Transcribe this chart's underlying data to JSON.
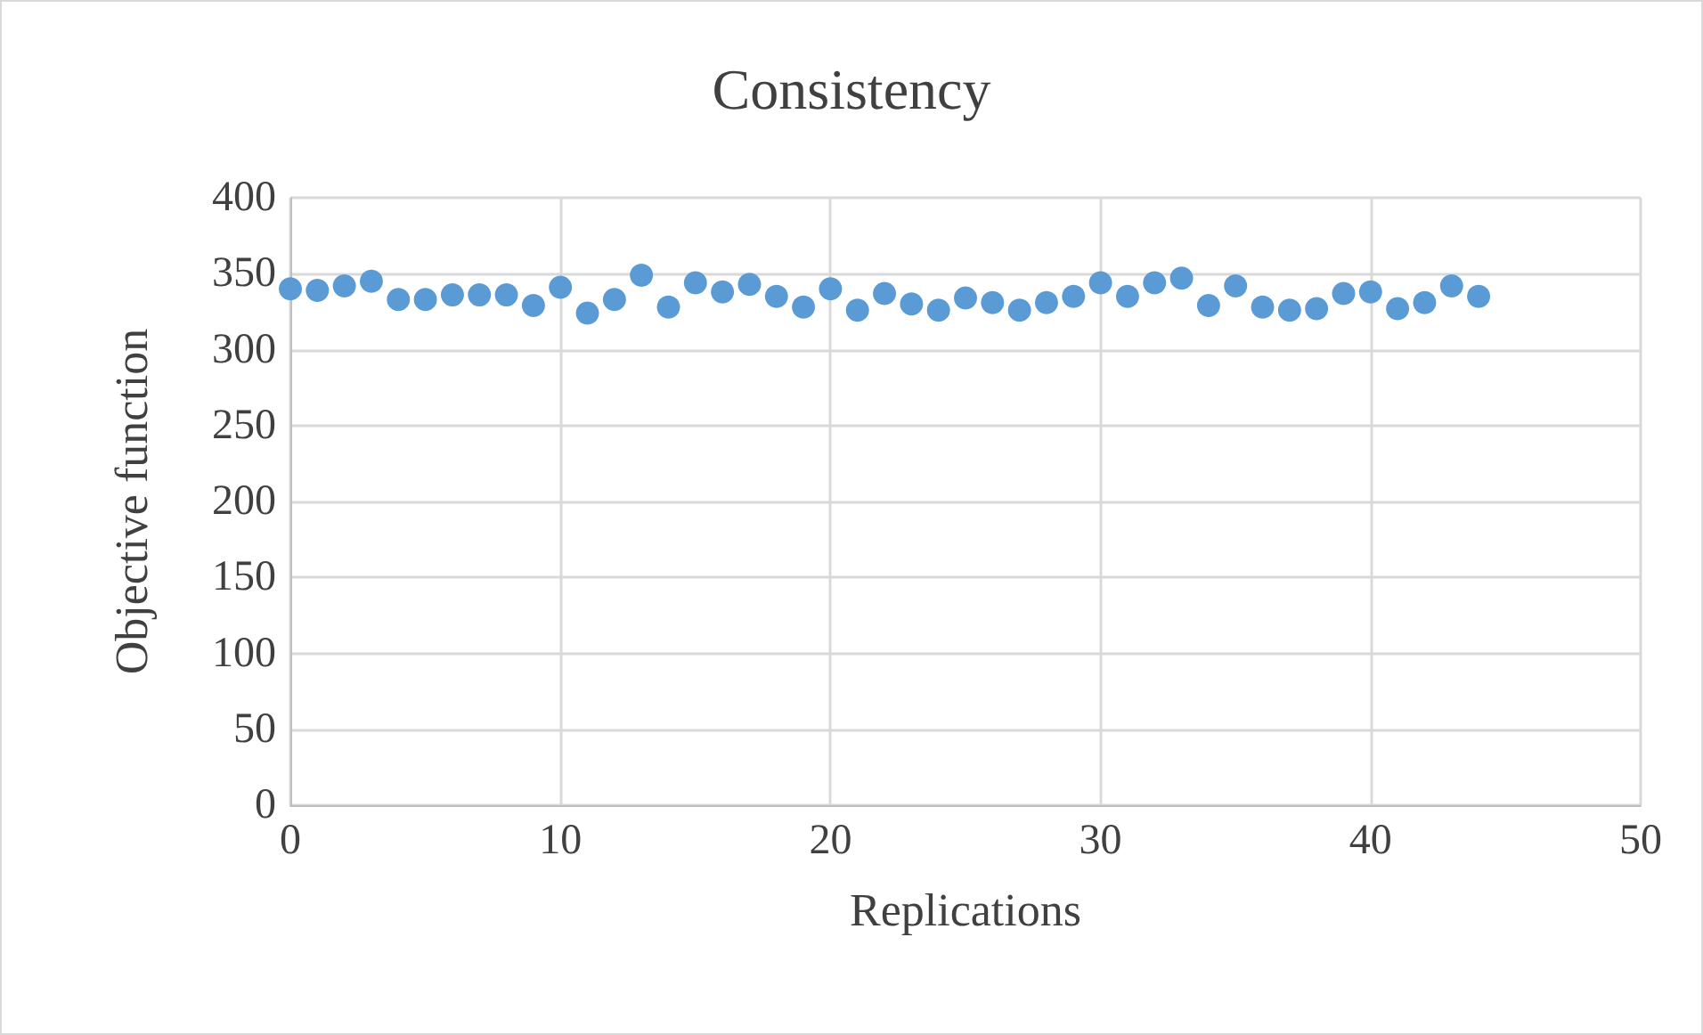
{
  "chart_data": {
    "type": "scatter",
    "title": "Consistency",
    "xlabel": "Replications",
    "ylabel": "Objective function",
    "x": [
      0,
      1,
      2,
      3,
      4,
      5,
      6,
      7,
      8,
      9,
      10,
      11,
      12,
      13,
      14,
      15,
      16,
      17,
      18,
      19,
      20,
      21,
      22,
      23,
      24,
      25,
      26,
      27,
      28,
      29,
      30,
      31,
      32,
      33,
      34,
      35,
      36,
      37,
      38,
      39,
      40,
      41,
      42,
      43,
      44
    ],
    "values": [
      340,
      339,
      342,
      345,
      333,
      333,
      336,
      336,
      336,
      329,
      341,
      324,
      333,
      349,
      328,
      344,
      338,
      343,
      335,
      328,
      340,
      326,
      337,
      330,
      326,
      334,
      331,
      326,
      331,
      335,
      344,
      335,
      344,
      347,
      329,
      342,
      328,
      326,
      327,
      337,
      338,
      327,
      331,
      342,
      335
    ],
    "color": "#5b9bd5",
    "marker": "circle",
    "xlim": [
      0,
      50
    ],
    "xticks": [
      0,
      10,
      20,
      30,
      40,
      50
    ],
    "ylim": [
      0,
      400
    ],
    "yticks": [
      0,
      50,
      100,
      150,
      200,
      250,
      300,
      350,
      400
    ],
    "grid": true
  }
}
